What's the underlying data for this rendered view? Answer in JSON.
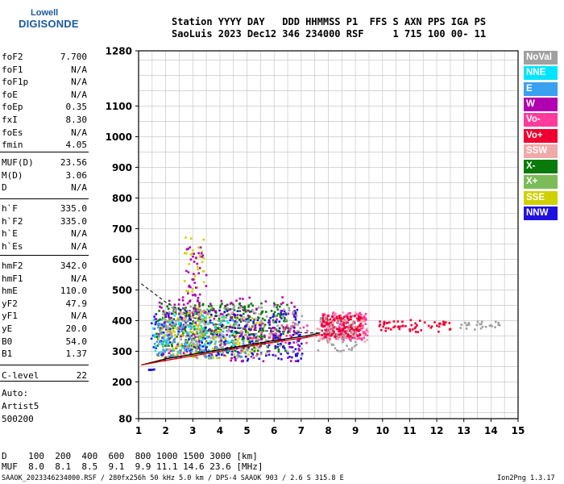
{
  "logo": {
    "line1": "Lowell",
    "line2": "DIGISONDE"
  },
  "header": {
    "line1": "Station YYYY DAY   DDD HHMMSS P1  FFS S AXN PPS IGA PS",
    "line2": "SaoLuis 2023 Dec12 346 234000 RSF     1 715 100 00- 11"
  },
  "params": {
    "group1": [
      {
        "k": "foF2",
        "v": "7.700"
      },
      {
        "k": "foF1",
        "v": "N/A"
      },
      {
        "k": "foF1p",
        "v": "N/A"
      },
      {
        "k": "foE",
        "v": "N/A"
      },
      {
        "k": "foEp",
        "v": "0.35"
      },
      {
        "k": "fxI",
        "v": "8.30"
      },
      {
        "k": "foEs",
        "v": "N/A"
      },
      {
        "k": "fmin",
        "v": "4.05"
      }
    ],
    "group2": [
      {
        "k": "MUF(D)",
        "v": "23.56"
      },
      {
        "k": "M(D)",
        "v": "3.06"
      },
      {
        "k": "D",
        "v": "N/A"
      }
    ],
    "group3": [
      {
        "k": "h`F",
        "v": "335.0"
      },
      {
        "k": "h`F2",
        "v": "335.0"
      },
      {
        "k": "h`E",
        "v": "N/A"
      },
      {
        "k": "h`Es",
        "v": "N/A"
      }
    ],
    "group4": [
      {
        "k": "hmF2",
        "v": "342.0"
      },
      {
        "k": "hmF1",
        "v": "N/A"
      },
      {
        "k": "hmE",
        "v": "110.0"
      },
      {
        "k": "yF2",
        "v": "47.9"
      },
      {
        "k": "yF1",
        "v": "N/A"
      },
      {
        "k": "yE",
        "v": "20.0"
      },
      {
        "k": "B0",
        "v": "54.0"
      },
      {
        "k": "B1",
        "v": "1.37"
      }
    ],
    "group5": [
      {
        "k": "C-level",
        "v": "22"
      }
    ],
    "auto": [
      "Auto:",
      "Artist5",
      "500200"
    ]
  },
  "legend": [
    {
      "label": "NoVal",
      "color": "#a0a0a0"
    },
    {
      "label": "NNE",
      "color": "#00e5ff"
    },
    {
      "label": "E",
      "color": "#3aa0f0"
    },
    {
      "label": "W",
      "color": "#b000b0"
    },
    {
      "label": "Vo-",
      "color": "#ff3c9c"
    },
    {
      "label": "Vo+",
      "color": "#f00030"
    },
    {
      "label": "SSW",
      "color": "#f0a8a8"
    },
    {
      "label": "X-",
      "color": "#0a7a0a"
    },
    {
      "label": "X+",
      "color": "#7cbc58"
    },
    {
      "label": "SSE",
      "color": "#d0d000"
    },
    {
      "label": "NNW",
      "color": "#2010e0"
    }
  ],
  "footer": {
    "line1": "D    100  200  400  600  800 1000 1500 3000 [km]",
    "line2": "MUF  8.0  8.1  8.5  9.1  9.9 11.1 14.6 23.6 [MHz]",
    "bottom_left": "SAAOK_2023346234000.RSF / 280fx256h 50 kHz 5.0 km / DPS-4 SAAOK 903 / 2.6 S 315.8 E",
    "bottom_right": "Ion2Png 1.3.17"
  },
  "chart_data": {
    "type": "scatter",
    "xlim": [
      1,
      15
    ],
    "x_ticks": [
      1,
      2,
      3,
      4,
      5,
      6,
      7,
      8,
      9,
      10,
      11,
      12,
      13,
      14,
      15
    ],
    "ylim": [
      80,
      1280
    ],
    "y_ticks": [
      80,
      200,
      300,
      400,
      500,
      600,
      700,
      800,
      900,
      1000,
      1100,
      1280
    ],
    "grid": true,
    "series": [
      {
        "color": "#0a7a0a",
        "cloud": [
          [
            1.6,
            6.5,
            300,
            460,
            340
          ]
        ]
      },
      {
        "color": "#7cbc58",
        "cloud": [
          [
            1.8,
            4.2,
            280,
            450,
            180
          ]
        ]
      },
      {
        "color": "#ff3c9c",
        "cloud": [
          [
            7.7,
            9.4,
            340,
            430,
            170
          ],
          [
            4.5,
            7.2,
            330,
            400,
            60
          ]
        ]
      },
      {
        "color": "#f00030",
        "cloud": [
          [
            7.7,
            9.2,
            350,
            420,
            160
          ],
          [
            9.8,
            12.5,
            365,
            405,
            60
          ]
        ]
      },
      {
        "color": "#d0d000",
        "cloud": [
          [
            1.7,
            5.5,
            280,
            420,
            150
          ],
          [
            2.6,
            3.4,
            400,
            680,
            45
          ]
        ]
      },
      {
        "color": "#2010e0",
        "cloud": [
          [
            1.4,
            7.0,
            270,
            440,
            240
          ],
          [
            1.3,
            1.6,
            240,
            245,
            6
          ]
        ]
      },
      {
        "color": "#b000b0",
        "cloud": [
          [
            1.6,
            7.0,
            270,
            480,
            170
          ],
          [
            2.7,
            3.5,
            430,
            650,
            40
          ]
        ]
      },
      {
        "color": "#a0a0a0",
        "cloud": [
          [
            1.7,
            7.0,
            280,
            450,
            140
          ],
          [
            7.5,
            9.0,
            300,
            420,
            50
          ],
          [
            12.8,
            14.4,
            370,
            400,
            25
          ]
        ]
      },
      {
        "color": "#3aa0f0",
        "cloud": [
          [
            1.5,
            5.0,
            280,
            410,
            100
          ]
        ]
      },
      {
        "color": "#00e5ff",
        "cloud": [
          [
            1.5,
            4.5,
            300,
            420,
            60
          ]
        ]
      },
      {
        "color": "#f0a8a8",
        "cloud": [
          [
            2.0,
            6.0,
            280,
            440,
            50
          ],
          [
            7.5,
            9.5,
            330,
            430,
            40
          ]
        ]
      }
    ],
    "curves": [
      {
        "x": [
          1.1,
          2,
          3,
          4,
          5,
          6,
          7.2,
          7.7
        ],
        "y": [
          255,
          275,
          290,
          305,
          320,
          335,
          350,
          360
        ],
        "color": "#000000"
      },
      {
        "x": [
          1.1,
          2,
          3,
          4,
          5,
          6,
          7.2,
          7.7
        ],
        "y": [
          520,
          460,
          410,
          385,
          370,
          365,
          360,
          360
        ],
        "color": "#303030",
        "dashed": true
      },
      {
        "x": [
          1.1,
          2,
          3,
          4,
          5,
          6,
          7.2,
          7.7
        ],
        "y": [
          255,
          270,
          285,
          300,
          315,
          330,
          345,
          355
        ],
        "color": "#d00000"
      }
    ]
  }
}
